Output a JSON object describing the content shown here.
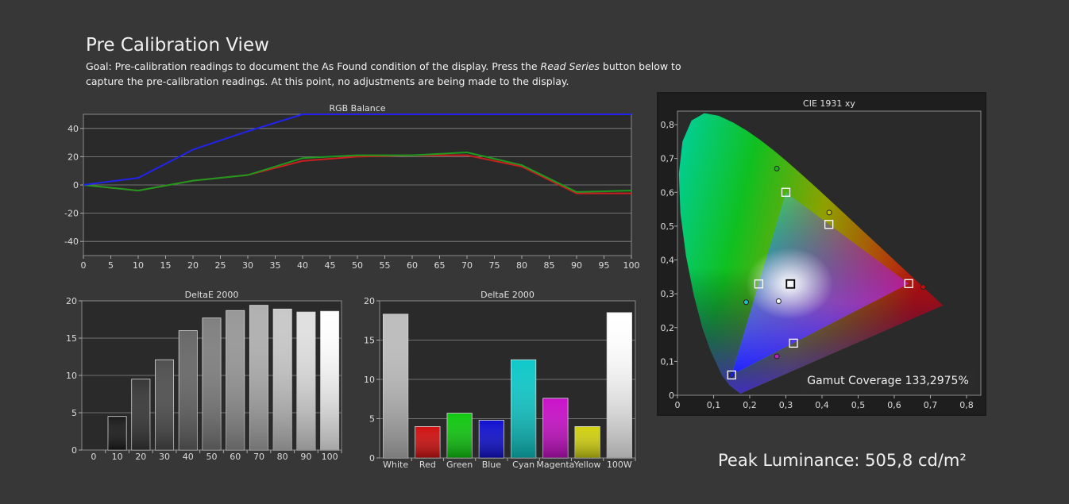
{
  "page": {
    "title": "Pre Calibration View",
    "goal_prefix": "Goal: Pre-calibration readings to document the As Found condition of the display. Press the ",
    "goal_italic": "Read Series",
    "goal_suffix": " button below to capture the pre-calibration readings. At this point, no adjustments are being made to the display.",
    "peak_luminance": "Peak Luminance: 505,8 cd/m²",
    "gamut_coverage": "Gamut Coverage 133,2975%"
  },
  "chart_data": [
    {
      "type": "line",
      "title": "RGB Balance",
      "x": [
        0,
        10,
        20,
        30,
        40,
        50,
        60,
        70,
        80,
        90,
        100
      ],
      "xticks": [
        0,
        5,
        10,
        15,
        20,
        25,
        30,
        35,
        40,
        45,
        50,
        55,
        60,
        65,
        70,
        75,
        80,
        85,
        90,
        95,
        100
      ],
      "yticks": [
        -40,
        -20,
        0,
        20,
        40
      ],
      "ylim": [
        -50,
        50
      ],
      "xlim": [
        0,
        100
      ],
      "grid": true,
      "series": [
        {
          "color": "#cc1e1e",
          "values": [
            0,
            -4,
            3,
            7,
            17,
            20,
            21,
            21,
            13,
            -6,
            -6
          ]
        },
        {
          "color": "#1e9a1e",
          "values": [
            0,
            -4,
            3,
            7,
            19,
            21,
            21,
            23,
            14,
            -5,
            -4
          ]
        },
        {
          "color": "#2222ee",
          "values": [
            0,
            5,
            25,
            38,
            50,
            50,
            50,
            50,
            50,
            50,
            50
          ]
        }
      ]
    },
    {
      "type": "bar",
      "title": "DeltaE 2000",
      "categories": [
        "0",
        "10",
        "20",
        "30",
        "40",
        "50",
        "60",
        "70",
        "80",
        "90",
        "100"
      ],
      "values": [
        0,
        4.5,
        9.5,
        12.1,
        16,
        17.7,
        18.7,
        19.4,
        18.9,
        18.5,
        18.6
      ],
      "colors": [
        "#000000",
        "#1a1a1a",
        "#383838",
        "#505050",
        "#686868",
        "#808080",
        "#989898",
        "#b0b0b0",
        "#c8c8c8",
        "#e0e0e0",
        "#ffffff"
      ],
      "yticks": [
        0,
        5,
        10,
        15,
        20
      ],
      "ylim": [
        0,
        20
      ],
      "grid": true
    },
    {
      "type": "bar",
      "title": "DeltaE 2000",
      "categories": [
        "White",
        "Red",
        "Green",
        "Blue",
        "Cyan",
        "Magenta",
        "Yellow",
        "100W"
      ],
      "values": [
        18.3,
        4,
        5.7,
        4.8,
        12.5,
        7.6,
        4,
        18.5
      ],
      "colors": [
        "#bdbdbd",
        "#d01010",
        "#10c810",
        "#1010d0",
        "#10c8c8",
        "#c810c8",
        "#d0d010",
        "#ffffff"
      ],
      "yticks": [
        0,
        5,
        10,
        15,
        20
      ],
      "ylim": [
        0,
        20
      ],
      "grid": true
    },
    {
      "type": "scatter",
      "title": "CIE 1931 xy",
      "xticks": [
        "0",
        "0,1",
        "0,2",
        "0,3",
        "0,4",
        "0,5",
        "0,6",
        "0,7",
        "0,8"
      ],
      "yticks": [
        "0",
        "0,1",
        "0,2",
        "0,3",
        "0,4",
        "0,5",
        "0,6",
        "0,7",
        "0,8"
      ],
      "xlim": [
        0,
        0.8
      ],
      "ylim": [
        0,
        0.8
      ],
      "target_points": [
        {
          "name": "R",
          "x": 0.64,
          "y": 0.33
        },
        {
          "name": "G",
          "x": 0.3,
          "y": 0.6
        },
        {
          "name": "B",
          "x": 0.15,
          "y": 0.06
        },
        {
          "name": "C",
          "x": 0.225,
          "y": 0.329
        },
        {
          "name": "M",
          "x": 0.321,
          "y": 0.154
        },
        {
          "name": "Y",
          "x": 0.419,
          "y": 0.505
        },
        {
          "name": "W",
          "x": 0.3127,
          "y": 0.329
        }
      ],
      "measured_points": [
        {
          "name": "R",
          "x": 0.68,
          "y": 0.32,
          "color": "#c01010"
        },
        {
          "name": "G",
          "x": 0.275,
          "y": 0.67,
          "color": "#20b020"
        },
        {
          "name": "B",
          "x": 0.15,
          "y": 0.06,
          "color": "#2020d0"
        },
        {
          "name": "C",
          "x": 0.19,
          "y": 0.275,
          "color": "#20c0c0"
        },
        {
          "name": "M",
          "x": 0.275,
          "y": 0.115,
          "color": "#c020c0"
        },
        {
          "name": "Y",
          "x": 0.42,
          "y": 0.54,
          "color": "#c0c010"
        },
        {
          "name": "W",
          "x": 0.28,
          "y": 0.278,
          "color": "#ffffff"
        }
      ]
    }
  ]
}
